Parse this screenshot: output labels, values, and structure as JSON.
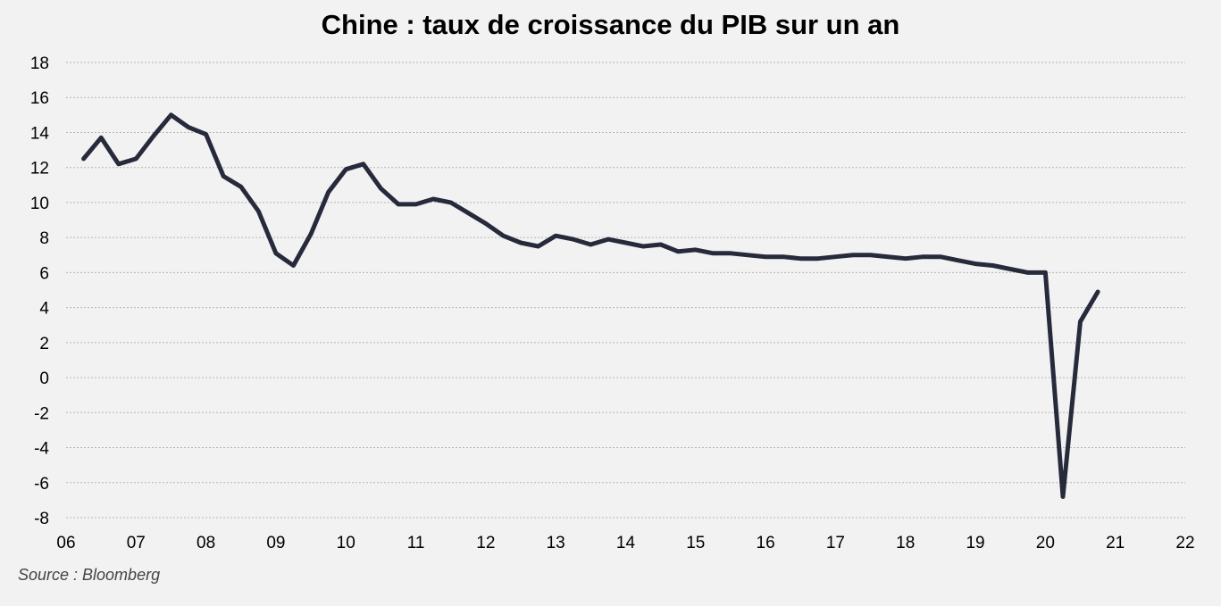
{
  "chart_data": {
    "type": "line",
    "title": "Chine : taux de croissance du PIB sur un an",
    "source": "Source : Bloomberg",
    "xlabel": "",
    "ylabel": "",
    "xlim": [
      2006,
      2022
    ],
    "ylim": [
      -8,
      18
    ],
    "xticks": [
      2006,
      2007,
      2008,
      2009,
      2010,
      2011,
      2012,
      2013,
      2014,
      2015,
      2016,
      2017,
      2018,
      2019,
      2020,
      2021,
      2022
    ],
    "xtick_labels": [
      "06",
      "07",
      "08",
      "09",
      "10",
      "11",
      "12",
      "13",
      "14",
      "15",
      "16",
      "17",
      "18",
      "19",
      "20",
      "21",
      "22"
    ],
    "yticks": [
      -8,
      -6,
      -4,
      -2,
      0,
      2,
      4,
      6,
      8,
      10,
      12,
      14,
      16,
      18
    ],
    "ytick_labels": [
      "-8",
      "-6",
      "-4",
      "-2",
      "0",
      "2",
      "4",
      "6",
      "8",
      "10",
      "12",
      "14",
      "16",
      "18"
    ],
    "grid": "horizontal-dotted",
    "legend": "none",
    "line_color": "#262a3b",
    "series": [
      {
        "x": [
          2006.25,
          2006.5,
          2006.75,
          2007.0,
          2007.25,
          2007.5,
          2007.75,
          2008.0,
          2008.25,
          2008.5,
          2008.75,
          2009.0,
          2009.25,
          2009.5,
          2009.75,
          2010.0,
          2010.25,
          2010.5,
          2010.75,
          2011.0,
          2011.25,
          2011.5,
          2011.75,
          2012.0,
          2012.25,
          2012.5,
          2012.75,
          2013.0,
          2013.25,
          2013.5,
          2013.75,
          2014.0,
          2014.25,
          2014.5,
          2014.75,
          2015.0,
          2015.25,
          2015.5,
          2015.75,
          2016.0,
          2016.25,
          2016.5,
          2016.75,
          2017.0,
          2017.25,
          2017.5,
          2017.75,
          2018.0,
          2018.25,
          2018.5,
          2018.75,
          2019.0,
          2019.25,
          2019.5,
          2019.75,
          2020.0,
          2020.25,
          2020.5,
          2020.75
        ],
        "values": [
          12.5,
          13.7,
          12.2,
          12.5,
          13.8,
          15.0,
          14.3,
          13.9,
          11.5,
          10.9,
          9.5,
          7.1,
          6.4,
          8.2,
          10.6,
          11.9,
          12.2,
          10.8,
          9.9,
          9.9,
          10.2,
          10.0,
          9.4,
          8.8,
          8.1,
          7.7,
          7.5,
          8.1,
          7.9,
          7.6,
          7.9,
          7.7,
          7.5,
          7.6,
          7.2,
          7.3,
          7.1,
          7.1,
          7.0,
          6.9,
          6.9,
          6.8,
          6.8,
          6.9,
          7.0,
          7.0,
          6.9,
          6.8,
          6.9,
          6.9,
          6.7,
          6.5,
          6.4,
          6.2,
          6.0,
          6.0,
          -6.8,
          3.2,
          4.9
        ]
      }
    ]
  }
}
